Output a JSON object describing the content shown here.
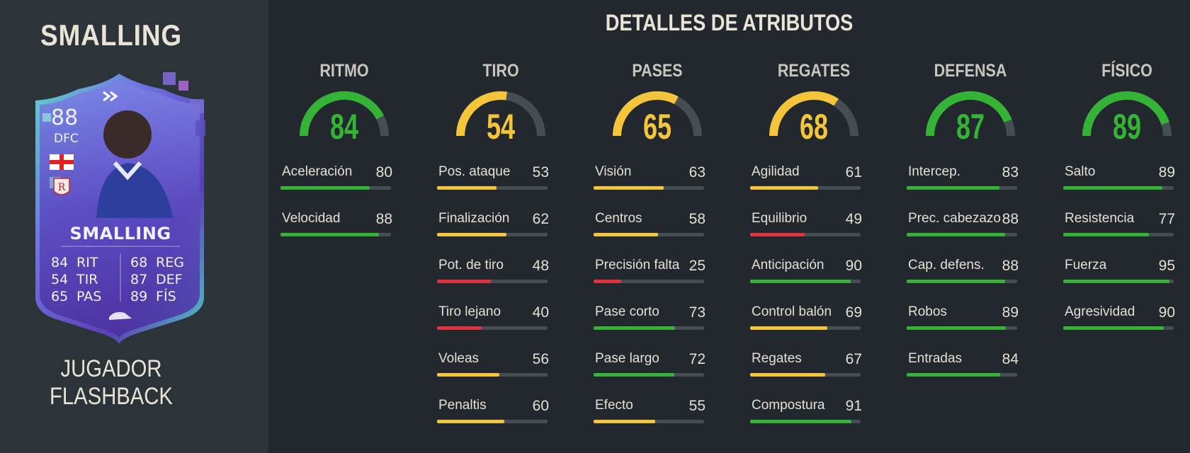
{
  "player": {
    "name": "SMALLING",
    "card_type": "JUGADOR FLASHBACK"
  },
  "card": {
    "rating": "88",
    "position": "DFC",
    "name": "SMALLING",
    "stats_left": [
      {
        "value": "84",
        "label": "RIT"
      },
      {
        "value": "54",
        "label": "TIR"
      },
      {
        "value": "65",
        "label": "PAS"
      }
    ],
    "stats_right": [
      {
        "value": "68",
        "label": "REG"
      },
      {
        "value": "87",
        "label": "DEF"
      },
      {
        "value": "89",
        "label": "FÍS"
      }
    ]
  },
  "details_title": "DETALLES DE ATRIBUTOS",
  "colors": {
    "green": "#35b336",
    "yellow": "#f4c43b",
    "red": "#e3323e",
    "track": "#464e55"
  },
  "categories": [
    {
      "name": "RITMO",
      "value": 84,
      "stats": [
        {
          "name": "Aceleración",
          "value": 80
        },
        {
          "name": "Velocidad",
          "value": 88
        }
      ]
    },
    {
      "name": "TIRO",
      "value": 54,
      "stats": [
        {
          "name": "Pos. ataque",
          "value": 53
        },
        {
          "name": "Finalización",
          "value": 62
        },
        {
          "name": "Pot. de tiro",
          "value": 48
        },
        {
          "name": "Tiro lejano",
          "value": 40
        },
        {
          "name": "Voleas",
          "value": 56
        },
        {
          "name": "Penaltis",
          "value": 60
        }
      ]
    },
    {
      "name": "PASES",
      "value": 65,
      "stats": [
        {
          "name": "Visión",
          "value": 63
        },
        {
          "name": "Centros",
          "value": 58
        },
        {
          "name": "Precisión falta",
          "value": 25
        },
        {
          "name": "Pase corto",
          "value": 73
        },
        {
          "name": "Pase largo",
          "value": 72
        },
        {
          "name": "Efecto",
          "value": 55
        }
      ]
    },
    {
      "name": "REGATES",
      "value": 68,
      "stats": [
        {
          "name": "Agilidad",
          "value": 61
        },
        {
          "name": "Equilibrio",
          "value": 49
        },
        {
          "name": "Anticipación",
          "value": 90
        },
        {
          "name": "Control balón",
          "value": 69
        },
        {
          "name": "Regates",
          "value": 67
        },
        {
          "name": "Compostura",
          "value": 91
        }
      ]
    },
    {
      "name": "DEFENSA",
      "value": 87,
      "stats": [
        {
          "name": "Intercep.",
          "value": 83
        },
        {
          "name": "Prec. cabezazo",
          "value": 88
        },
        {
          "name": "Cap. defens.",
          "value": 88
        },
        {
          "name": "Robos",
          "value": 89
        },
        {
          "name": "Entradas",
          "value": 84
        }
      ]
    },
    {
      "name": "FÍSICO",
      "value": 89,
      "stats": [
        {
          "name": "Salto",
          "value": 89
        },
        {
          "name": "Resistencia",
          "value": 77
        },
        {
          "name": "Fuerza",
          "value": 95
        },
        {
          "name": "Agresividad",
          "value": 90
        }
      ]
    }
  ]
}
